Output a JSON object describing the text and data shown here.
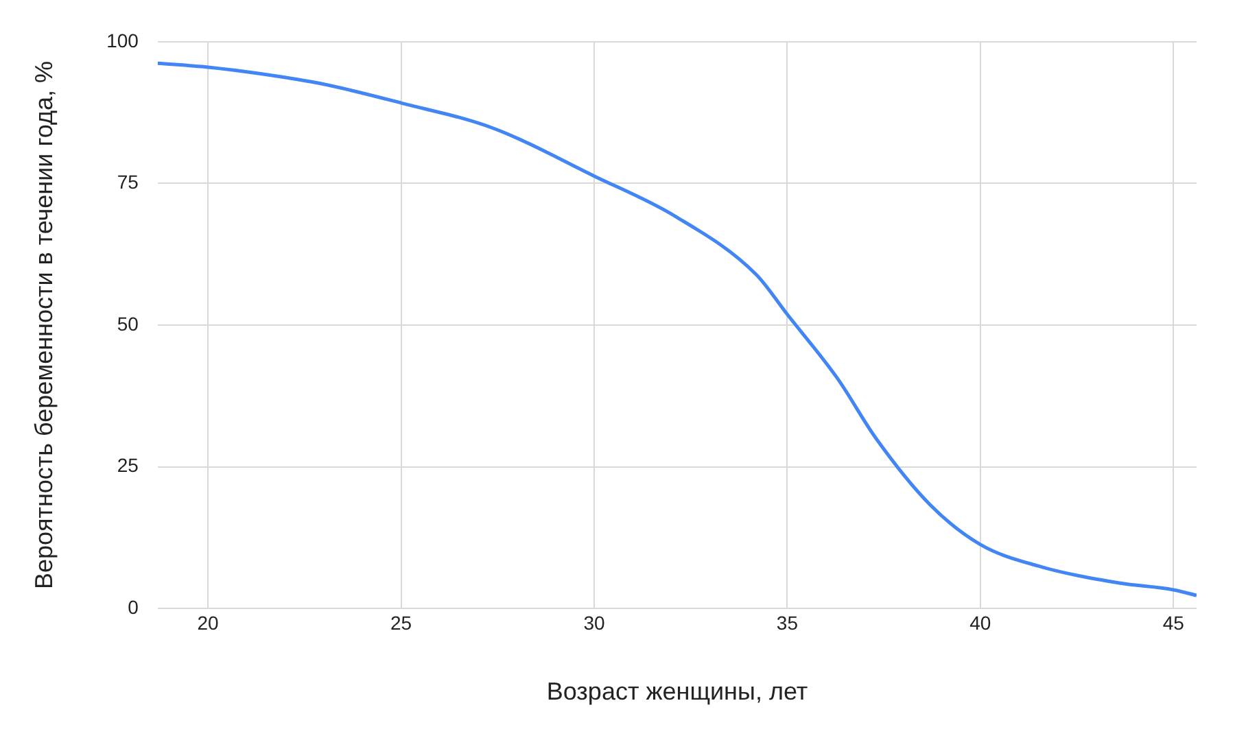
{
  "chart_data": {
    "type": "line",
    "xlabel": "Возраст женщины, лет",
    "ylabel": "Вероятность беременности в течении года, %",
    "x": [
      18.7,
      20,
      21.3,
      23,
      25,
      27.4,
      30,
      32.1,
      34.2,
      35,
      36.3,
      37.3,
      38.7,
      40,
      41.5,
      43.6,
      45,
      45.6
    ],
    "series": [
      {
        "color": "#4285f4",
        "values": [
          96.2,
          95.5,
          94.4,
          92.5,
          89.2,
          84.7,
          76.3,
          69.2,
          58.9,
          51.9,
          40.6,
          30,
          18.3,
          11.3,
          7.5,
          4.5,
          3.3,
          2.3
        ]
      }
    ],
    "xlim": [
      18.7,
      45.6
    ],
    "xticks": [
      20,
      25,
      30,
      35,
      40,
      45
    ],
    "ylim": [
      0,
      100
    ],
    "yticks": [
      0,
      25,
      50,
      75,
      100
    ],
    "grid": true,
    "legend": false,
    "marker": "none",
    "line_style": "solid"
  }
}
